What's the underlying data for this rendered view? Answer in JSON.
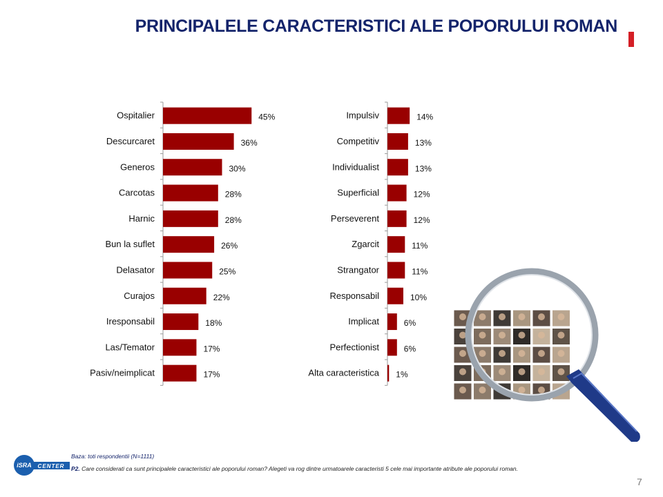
{
  "title": "PRINCIPALELE CARACTERISTICI ALE POPORULUI ROMAN",
  "colors": {
    "bar": "#990000",
    "title": "#14246b",
    "accent": "#d41f26"
  },
  "chart_data": [
    {
      "type": "bar",
      "orientation": "horizontal",
      "categories": [
        "Ospitalier",
        "Descurcaret",
        "Generos",
        "Carcotas",
        "Harnic",
        "Bun la suflet",
        "Delasator",
        "Curajos",
        "Iresponsabil",
        "Las/Temator",
        "Pasiv/neimplicat"
      ],
      "values": [
        45,
        36,
        30,
        28,
        28,
        26,
        25,
        22,
        18,
        17,
        17
      ],
      "value_labels": [
        "45%",
        "36%",
        "30%",
        "28%",
        "28%",
        "26%",
        "25%",
        "22%",
        "18%",
        "17%",
        "17%"
      ],
      "xlim": [
        0,
        100
      ]
    },
    {
      "type": "bar",
      "orientation": "horizontal",
      "categories": [
        "Impulsiv",
        "Competitiv",
        "Individualist",
        "Superficial",
        "Perseverent",
        "Zgarcit",
        "Strangator",
        "Responsabil",
        "Implicat",
        "Perfectionist",
        "Alta caracteristica"
      ],
      "values": [
        14,
        13,
        13,
        12,
        12,
        11,
        11,
        10,
        6,
        6,
        1
      ],
      "value_labels": [
        "14%",
        "13%",
        "13%",
        "12%",
        "12%",
        "11%",
        "11%",
        "10%",
        "6%",
        "6%",
        "1%"
      ],
      "xlim": [
        0,
        100
      ]
    }
  ],
  "footer": {
    "base": "Baza: toti respondentii (N=1111)",
    "question_prefix": "P2.",
    "question_text": "Care considerati ca sunt principalele caracteristici ale poporului roman? Alegeti va rog dintre urmatoarele caracteristi 5 cele mai importante atribute ale poporului roman."
  },
  "logo": {
    "brand": "iSRA",
    "sub": "CENTER"
  },
  "page_number": "7"
}
